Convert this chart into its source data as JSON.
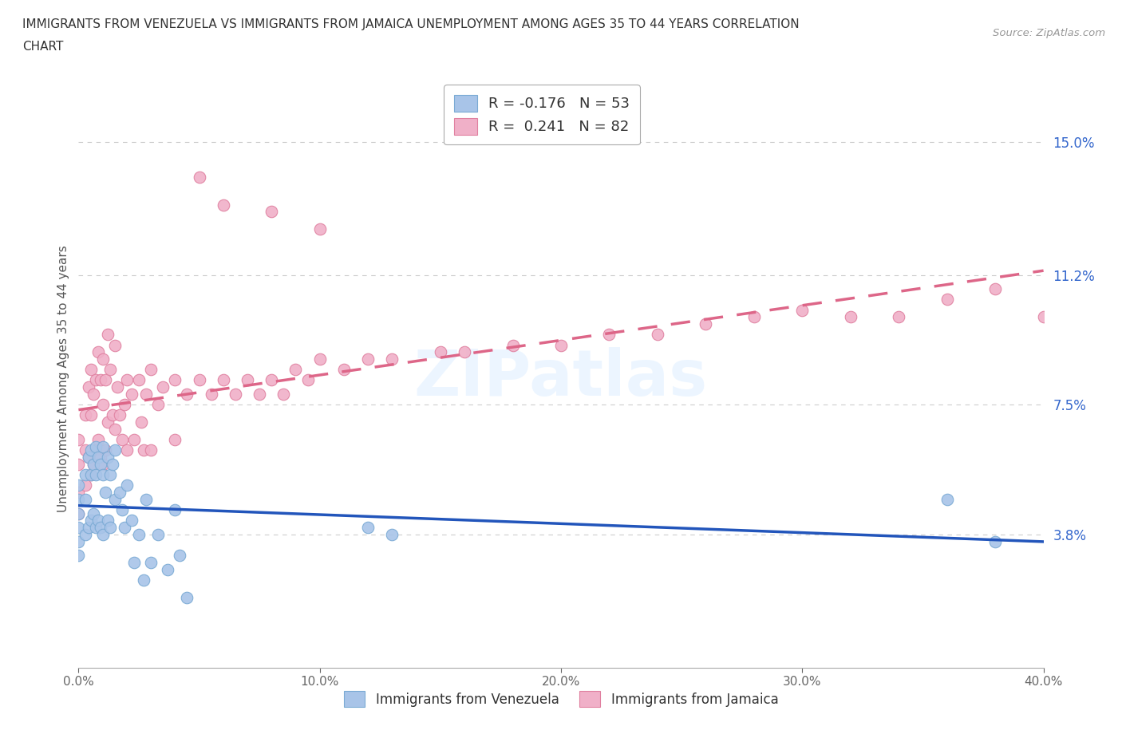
{
  "title_line1": "IMMIGRANTS FROM VENEZUELA VS IMMIGRANTS FROM JAMAICA UNEMPLOYMENT AMONG AGES 35 TO 44 YEARS CORRELATION",
  "title_line2": "CHART",
  "source_text": "Source: ZipAtlas.com",
  "ylabel": "Unemployment Among Ages 35 to 44 years",
  "xlim": [
    0.0,
    0.4
  ],
  "ylim": [
    0.0,
    0.165
  ],
  "xticks": [
    0.0,
    0.1,
    0.2,
    0.3,
    0.4
  ],
  "xticklabels": [
    "0.0%",
    "10.0%",
    "20.0%",
    "30.0%",
    "40.0%"
  ],
  "ytick_positions": [
    0.038,
    0.075,
    0.112,
    0.15
  ],
  "ytick_labels": [
    "3.8%",
    "7.5%",
    "11.2%",
    "15.0%"
  ],
  "gridline_color": "#cccccc",
  "background_color": "#ffffff",
  "watermark_text": "ZIPatlas",
  "legend_r_venezuela": "-0.176",
  "legend_n_venezuela": "53",
  "legend_r_jamaica": "0.241",
  "legend_n_jamaica": "82",
  "venezuela_color": "#a8c4e8",
  "venezuela_edge": "#7aaad4",
  "jamaica_color": "#f0b0c8",
  "jamaica_edge": "#e080a0",
  "trendline_venezuela_color": "#2255bb",
  "trendline_jamaica_color": "#dd6688",
  "venezuela_x": [
    0.0,
    0.0,
    0.0,
    0.0,
    0.0,
    0.0,
    0.003,
    0.003,
    0.003,
    0.004,
    0.004,
    0.005,
    0.005,
    0.005,
    0.006,
    0.006,
    0.007,
    0.007,
    0.007,
    0.008,
    0.008,
    0.009,
    0.009,
    0.01,
    0.01,
    0.01,
    0.011,
    0.012,
    0.012,
    0.013,
    0.013,
    0.014,
    0.015,
    0.015,
    0.017,
    0.018,
    0.019,
    0.02,
    0.022,
    0.023,
    0.025,
    0.027,
    0.028,
    0.03,
    0.033,
    0.037,
    0.04,
    0.042,
    0.045,
    0.12,
    0.13,
    0.36,
    0.38
  ],
  "venezuela_y": [
    0.052,
    0.048,
    0.044,
    0.04,
    0.036,
    0.032,
    0.055,
    0.048,
    0.038,
    0.06,
    0.04,
    0.062,
    0.055,
    0.042,
    0.058,
    0.044,
    0.063,
    0.055,
    0.04,
    0.06,
    0.042,
    0.058,
    0.04,
    0.063,
    0.055,
    0.038,
    0.05,
    0.06,
    0.042,
    0.055,
    0.04,
    0.058,
    0.062,
    0.048,
    0.05,
    0.045,
    0.04,
    0.052,
    0.042,
    0.03,
    0.038,
    0.025,
    0.048,
    0.03,
    0.038,
    0.028,
    0.045,
    0.032,
    0.02,
    0.04,
    0.038,
    0.048,
    0.036
  ],
  "jamaica_x": [
    0.0,
    0.0,
    0.0,
    0.0,
    0.003,
    0.003,
    0.003,
    0.004,
    0.004,
    0.005,
    0.005,
    0.005,
    0.006,
    0.006,
    0.007,
    0.007,
    0.008,
    0.008,
    0.009,
    0.009,
    0.01,
    0.01,
    0.01,
    0.011,
    0.011,
    0.012,
    0.012,
    0.013,
    0.014,
    0.015,
    0.015,
    0.016,
    0.017,
    0.018,
    0.019,
    0.02,
    0.02,
    0.022,
    0.023,
    0.025,
    0.026,
    0.027,
    0.028,
    0.03,
    0.03,
    0.033,
    0.035,
    0.04,
    0.04,
    0.045,
    0.05,
    0.055,
    0.06,
    0.065,
    0.07,
    0.075,
    0.08,
    0.085,
    0.09,
    0.095,
    0.1,
    0.11,
    0.12,
    0.13,
    0.15,
    0.16,
    0.18,
    0.2,
    0.22,
    0.24,
    0.26,
    0.28,
    0.3,
    0.32,
    0.34,
    0.36,
    0.38,
    0.4,
    0.05,
    0.06,
    0.08,
    0.1
  ],
  "jamaica_y": [
    0.065,
    0.058,
    0.05,
    0.044,
    0.072,
    0.062,
    0.052,
    0.08,
    0.06,
    0.085,
    0.072,
    0.055,
    0.078,
    0.058,
    0.082,
    0.062,
    0.09,
    0.065,
    0.082,
    0.06,
    0.088,
    0.075,
    0.058,
    0.082,
    0.062,
    0.095,
    0.07,
    0.085,
    0.072,
    0.092,
    0.068,
    0.08,
    0.072,
    0.065,
    0.075,
    0.082,
    0.062,
    0.078,
    0.065,
    0.082,
    0.07,
    0.062,
    0.078,
    0.085,
    0.062,
    0.075,
    0.08,
    0.082,
    0.065,
    0.078,
    0.082,
    0.078,
    0.082,
    0.078,
    0.082,
    0.078,
    0.082,
    0.078,
    0.085,
    0.082,
    0.088,
    0.085,
    0.088,
    0.088,
    0.09,
    0.09,
    0.092,
    0.092,
    0.095,
    0.095,
    0.098,
    0.1,
    0.102,
    0.1,
    0.1,
    0.105,
    0.108,
    0.1,
    0.14,
    0.132,
    0.13,
    0.125
  ]
}
